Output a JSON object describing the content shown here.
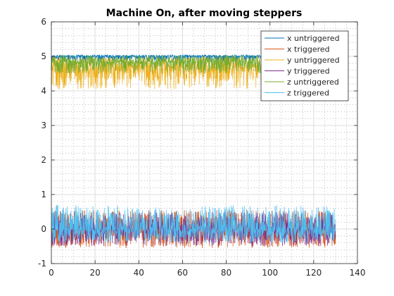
{
  "chart_data": {
    "type": "line",
    "title": "Machine On, after moving steppers",
    "xlabel": "",
    "ylabel": "",
    "xlim": [
      0,
      140
    ],
    "ylim": [
      -1,
      6
    ],
    "xticks": [
      0,
      20,
      40,
      60,
      80,
      100,
      120,
      140
    ],
    "yticks": [
      -1,
      0,
      1,
      2,
      3,
      4,
      5,
      6
    ],
    "grid": true,
    "minor_grid": true,
    "legend_position": "top-right",
    "sample_count": 1300,
    "x_range": [
      0,
      130
    ],
    "series": [
      {
        "name": "x untriggered",
        "color": "#0072BD",
        "center": 5.0,
        "low": 4.85,
        "high": 5.05
      },
      {
        "name": "x triggered",
        "color": "#D95319",
        "center": 0.0,
        "low": -0.55,
        "high": 0.55
      },
      {
        "name": "y untriggered",
        "color": "#EDB120",
        "center": 4.7,
        "low": 4.05,
        "high": 5.0
      },
      {
        "name": "y triggered",
        "color": "#7E2F8E",
        "center": 0.0,
        "low": -0.5,
        "high": 0.5
      },
      {
        "name": "z untriggered",
        "color": "#77AC30",
        "center": 4.85,
        "low": 4.5,
        "high": 5.05
      },
      {
        "name": "z triggered",
        "color": "#4DBEEE",
        "center": 0.0,
        "low": -0.4,
        "high": 0.7
      }
    ]
  }
}
